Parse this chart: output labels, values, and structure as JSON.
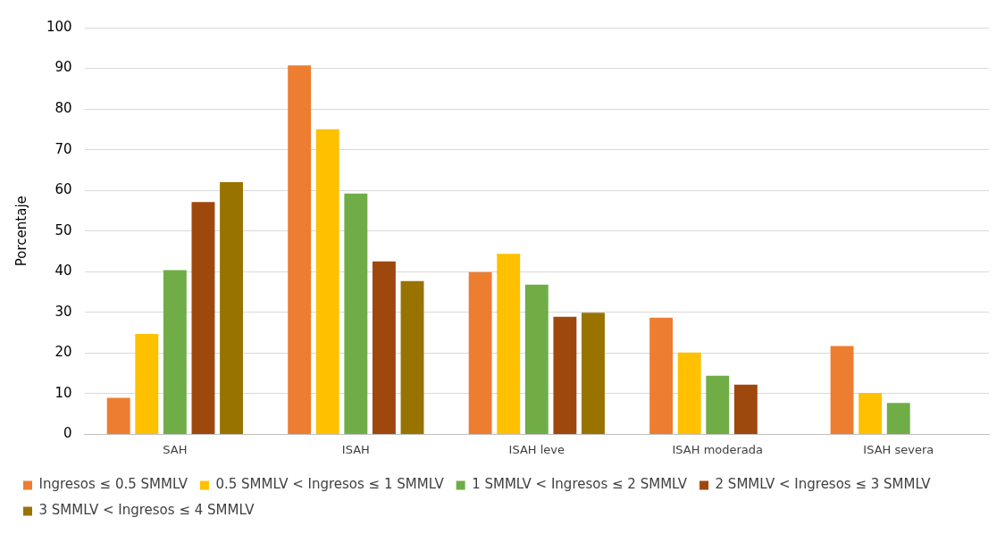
{
  "chart_data": {
    "type": "bar",
    "ylabel": "Porcentaje",
    "categories": [
      "SAH",
      "ISAH",
      "ISAH leve",
      "ISAH moderada",
      "ISAH severa"
    ],
    "series": [
      {
        "name": "Ingresos ≤ 0.5 SMMLV",
        "color": "#ed7d31",
        "values": [
          9.0,
          90.7,
          39.9,
          28.7,
          21.7
        ]
      },
      {
        "name": "0.5 SMMLV < Ingresos ≤ 1 SMMLV",
        "color": "#ffc000",
        "values": [
          24.7,
          75.0,
          44.4,
          20.1,
          10.2
        ]
      },
      {
        "name": "1 SMMLV < Ingresos ≤ 2 SMMLV",
        "color": "#70ad47",
        "values": [
          40.4,
          59.2,
          36.8,
          14.4,
          7.7
        ]
      },
      {
        "name": "2 SMMLV < Ingresos ≤ 3 SMMLV",
        "color": "#9e480e",
        "values": [
          57.1,
          42.5,
          28.9,
          12.2,
          null
        ]
      },
      {
        "name": "3 SMMLV < Ingresos ≤ 4 SMMLV",
        "color": "#997300",
        "values": [
          62.0,
          37.7,
          29.9,
          null,
          null
        ]
      }
    ],
    "ylim": [
      0,
      100
    ],
    "yticks": [
      0,
      10,
      20,
      30,
      40,
      50,
      60,
      70,
      80,
      90,
      100
    ],
    "grid": "y",
    "legend": "bottom"
  }
}
